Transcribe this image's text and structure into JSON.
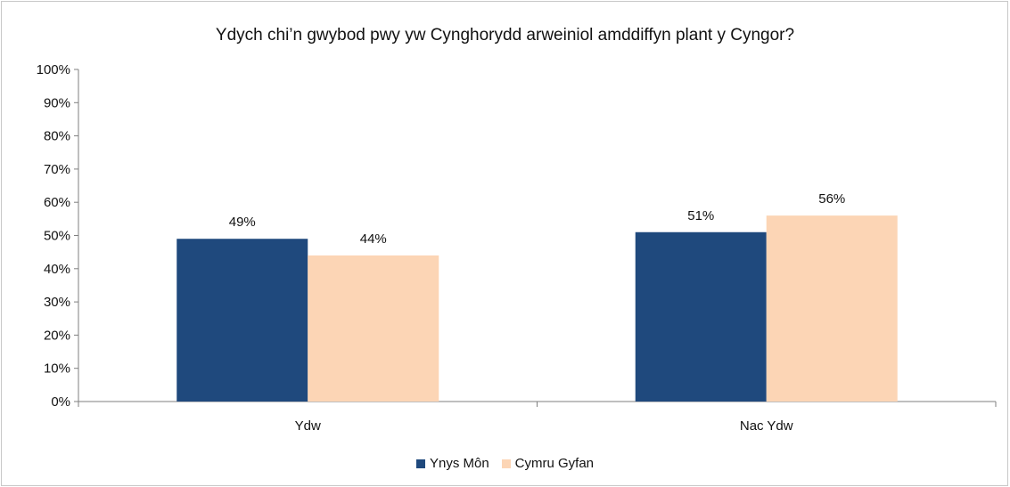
{
  "chart_data": {
    "type": "bar",
    "title": "Ydych chi’n gwybod pwy yw Cynghorydd arweiniol amddiffyn plant y Cyngor?",
    "categories": [
      "Ydw",
      "Nac Ydw"
    ],
    "series": [
      {
        "name": "Ynys Môn",
        "values": [
          49,
          51
        ],
        "color": "#1f497d"
      },
      {
        "name": "Cymru Gyfan",
        "values": [
          44,
          56
        ],
        "color": "#fcd5b5"
      }
    ],
    "ylim": [
      0,
      100
    ],
    "yticks": [
      "0%",
      "10%",
      "20%",
      "30%",
      "40%",
      "50%",
      "60%",
      "70%",
      "80%",
      "90%",
      "100%"
    ],
    "data_labels": [
      [
        "49%",
        "51%"
      ],
      [
        "44%",
        "56%"
      ]
    ],
    "grid": false,
    "legend_position": "bottom"
  }
}
